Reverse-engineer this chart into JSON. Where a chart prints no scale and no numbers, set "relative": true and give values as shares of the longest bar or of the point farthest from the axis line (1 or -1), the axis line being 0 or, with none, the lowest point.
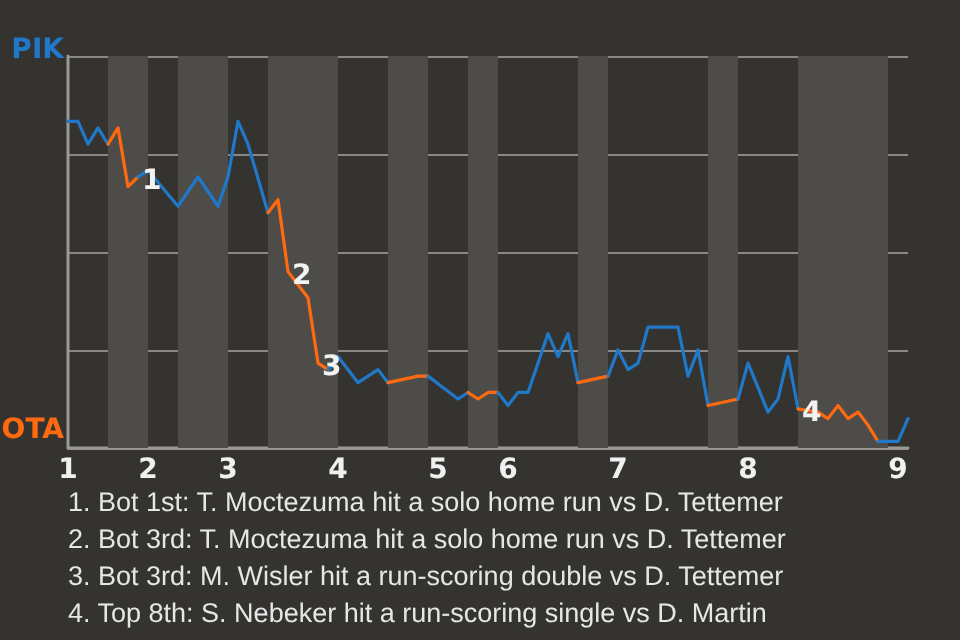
{
  "chart_data": {
    "type": "line",
    "relative": true,
    "categories": [
      "1",
      null,
      null,
      null,
      null,
      null,
      null,
      null,
      "2",
      null,
      null,
      null,
      null,
      null,
      null,
      null,
      "3",
      null,
      null,
      null,
      null,
      null,
      null,
      null,
      null,
      null,
      null,
      "4",
      null,
      null,
      null,
      null,
      null,
      null,
      null,
      null,
      null,
      "5",
      null,
      null,
      null,
      null,
      null,
      null,
      "6",
      null,
      null,
      null,
      null,
      null,
      null,
      null,
      null,
      null,
      null,
      "7",
      null,
      null,
      null,
      null,
      null,
      null,
      null,
      null,
      null,
      null,
      null,
      null,
      "8",
      null,
      null,
      null,
      null,
      null,
      null,
      null,
      null,
      null,
      null,
      null,
      null,
      null,
      null,
      "9",
      null
    ],
    "grid": "y",
    "marker": "none",
    "line_style": "solid",
    "series": [
      {
        "color": "#1f78c8",
        "values": [
          1,
          1,
          0.93,
          0.98,
          0.93,
          null,
          null,
          null,
          null,
          null,
          null,
          null,
          null,
          null,
          null,
          null,
          null,
          null,
          null,
          null,
          null,
          null,
          null,
          null,
          null,
          null,
          null,
          null,
          null,
          null,
          null,
          null,
          null,
          null,
          null,
          null,
          null,
          null,
          null,
          null,
          null,
          null,
          null,
          null,
          null,
          null,
          null,
          null,
          null,
          null,
          null,
          null,
          null,
          null,
          null,
          null,
          null,
          null,
          null,
          null,
          null,
          null,
          null,
          null,
          null,
          null,
          null,
          null,
          null,
          null,
          null,
          null,
          null,
          null,
          null,
          null,
          null,
          null,
          null,
          null,
          null,
          null,
          null,
          null,
          null
        ]
      },
      {
        "color": "#ff6a10",
        "values": [
          null,
          null,
          null,
          null,
          0.93,
          0.98,
          0.8,
          0.83,
          null,
          null,
          null,
          null,
          null,
          null,
          null,
          null,
          null,
          null,
          null,
          null,
          null,
          null,
          null,
          null,
          null,
          null,
          null,
          null,
          null,
          null,
          null,
          null,
          null,
          null,
          null,
          null,
          null,
          null,
          null,
          null,
          null,
          null,
          null,
          null,
          null,
          null,
          null,
          null,
          null,
          null,
          null,
          null,
          null,
          null,
          null,
          null,
          null,
          null,
          null,
          null,
          null,
          null,
          null,
          null,
          null,
          null,
          null,
          null,
          null,
          null,
          null,
          null,
          null,
          null,
          null,
          null,
          null,
          null,
          null,
          null,
          null,
          null,
          null,
          null,
          null
        ]
      },
      {
        "color": "#1f78c8",
        "values": [
          null,
          null,
          null,
          null,
          null,
          null,
          null,
          0.83,
          0.85,
          null,
          null,
          0.74,
          null,
          0.83,
          null,
          0.74,
          0.83,
          1,
          0.93,
          null,
          0.72,
          null,
          null,
          null,
          null,
          null,
          null,
          null,
          null,
          null,
          null,
          null,
          null,
          null,
          null,
          null,
          null,
          null,
          null,
          null,
          null,
          null,
          null,
          null,
          null,
          null,
          null,
          null,
          null,
          null,
          null,
          null,
          null,
          null,
          null,
          null,
          null,
          null,
          null,
          null,
          null,
          null,
          null,
          null,
          null,
          null,
          null,
          null,
          null,
          null,
          null,
          null,
          null,
          null,
          null,
          null,
          null,
          null,
          null,
          null,
          null,
          null,
          null,
          null,
          null
        ]
      },
      {
        "color": "#ff6a10",
        "values": [
          null,
          null,
          null,
          null,
          null,
          null,
          null,
          null,
          null,
          null,
          null,
          null,
          null,
          null,
          null,
          null,
          null,
          null,
          null,
          null,
          0.72,
          0.76,
          0.54,
          null,
          0.46,
          0.26,
          0.24,
          null,
          null,
          null,
          null,
          null,
          null,
          null,
          null,
          null,
          null,
          null,
          null,
          null,
          null,
          null,
          null,
          null,
          null,
          null,
          null,
          null,
          null,
          null,
          null,
          null,
          null,
          null,
          null,
          null,
          null,
          null,
          null,
          null,
          null,
          null,
          null,
          null,
          null,
          null,
          null,
          null,
          null,
          null,
          null,
          null,
          null,
          null,
          null,
          null,
          null,
          null,
          null,
          null,
          null,
          null,
          null,
          null,
          null
        ]
      },
      {
        "color": "#1f78c8",
        "values": [
          null,
          null,
          null,
          null,
          null,
          null,
          null,
          null,
          null,
          null,
          null,
          null,
          null,
          null,
          null,
          null,
          null,
          null,
          null,
          null,
          null,
          null,
          null,
          null,
          null,
          null,
          0.24,
          0.28,
          null,
          0.2,
          null,
          0.24,
          0.2,
          null,
          null,
          null,
          null,
          null,
          null,
          null,
          null,
          null,
          null,
          null,
          null,
          null,
          null,
          null,
          null,
          null,
          null,
          null,
          null,
          null,
          null,
          null,
          null,
          null,
          null,
          null,
          null,
          null,
          null,
          null,
          null,
          null,
          null,
          null,
          null,
          null,
          null,
          null,
          null,
          null,
          null,
          null,
          null,
          null,
          null,
          null,
          null,
          null,
          null,
          null,
          null
        ]
      },
      {
        "color": "#ff6a10",
        "values": [
          null,
          null,
          null,
          null,
          null,
          null,
          null,
          null,
          null,
          null,
          null,
          null,
          null,
          null,
          null,
          null,
          null,
          null,
          null,
          null,
          null,
          null,
          null,
          null,
          null,
          null,
          null,
          null,
          null,
          null,
          null,
          null,
          0.2,
          null,
          null,
          0.22,
          0.22,
          null,
          null,
          null,
          null,
          null,
          null,
          null,
          null,
          null,
          null,
          null,
          null,
          null,
          null,
          null,
          null,
          null,
          null,
          null,
          null,
          null,
          null,
          null,
          null,
          null,
          null,
          null,
          null,
          null,
          null,
          null,
          null,
          null,
          null,
          null,
          null,
          null,
          null,
          null,
          null,
          null,
          null,
          null,
          null,
          null,
          null,
          null,
          null
        ]
      },
      {
        "color": "#1f78c8",
        "values": [
          null,
          null,
          null,
          null,
          null,
          null,
          null,
          null,
          null,
          null,
          null,
          null,
          null,
          null,
          null,
          null,
          null,
          null,
          null,
          null,
          null,
          null,
          null,
          null,
          null,
          null,
          null,
          null,
          null,
          null,
          null,
          null,
          null,
          null,
          null,
          null,
          0.22,
          null,
          null,
          0.15,
          0.17,
          null,
          null,
          null,
          null,
          null,
          null,
          null,
          null,
          null,
          null,
          null,
          null,
          null,
          null,
          null,
          null,
          null,
          null,
          null,
          null,
          null,
          null,
          null,
          null,
          null,
          null,
          null,
          null,
          null,
          null,
          null,
          null,
          null,
          null,
          null,
          null,
          null,
          null,
          null,
          null,
          null,
          null,
          null,
          null
        ]
      },
      {
        "color": "#ff6a10",
        "values": [
          null,
          null,
          null,
          null,
          null,
          null,
          null,
          null,
          null,
          null,
          null,
          null,
          null,
          null,
          null,
          null,
          null,
          null,
          null,
          null,
          null,
          null,
          null,
          null,
          null,
          null,
          null,
          null,
          null,
          null,
          null,
          null,
          null,
          null,
          null,
          null,
          null,
          null,
          null,
          null,
          0.17,
          0.15,
          0.17,
          0.17,
          null,
          null,
          null,
          null,
          null,
          null,
          null,
          null,
          null,
          null,
          null,
          null,
          null,
          null,
          null,
          null,
          null,
          null,
          null,
          null,
          null,
          null,
          null,
          null,
          null,
          null,
          null,
          null,
          null,
          null,
          null,
          null,
          null,
          null,
          null,
          null,
          null,
          null,
          null,
          null,
          null
        ]
      },
      {
        "color": "#1f78c8",
        "values": [
          null,
          null,
          null,
          null,
          null,
          null,
          null,
          null,
          null,
          null,
          null,
          null,
          null,
          null,
          null,
          null,
          null,
          null,
          null,
          null,
          null,
          null,
          null,
          null,
          null,
          null,
          null,
          null,
          null,
          null,
          null,
          null,
          null,
          null,
          null,
          null,
          null,
          null,
          null,
          null,
          null,
          null,
          null,
          0.17,
          0.13,
          0.17,
          0.17,
          null,
          0.35,
          0.28,
          0.35,
          0.2,
          null,
          null,
          null,
          null,
          null,
          null,
          null,
          null,
          null,
          null,
          null,
          null,
          null,
          null,
          null,
          null,
          null,
          null,
          null,
          null,
          null,
          null,
          null,
          null,
          null,
          null,
          null,
          null,
          null,
          null,
          null,
          null,
          null
        ]
      },
      {
        "color": "#ff6a10",
        "values": [
          null,
          null,
          null,
          null,
          null,
          null,
          null,
          null,
          null,
          null,
          null,
          null,
          null,
          null,
          null,
          null,
          null,
          null,
          null,
          null,
          null,
          null,
          null,
          null,
          null,
          null,
          null,
          null,
          null,
          null,
          null,
          null,
          null,
          null,
          null,
          null,
          null,
          null,
          null,
          null,
          null,
          null,
          null,
          null,
          null,
          null,
          null,
          null,
          null,
          null,
          null,
          0.2,
          null,
          null,
          0.22,
          null,
          null,
          null,
          null,
          null,
          null,
          null,
          null,
          null,
          null,
          null,
          null,
          null,
          null,
          null,
          null,
          null,
          null,
          null,
          null,
          null,
          null,
          null,
          null,
          null,
          null,
          null,
          null,
          null,
          null
        ]
      },
      {
        "color": "#1f78c8",
        "values": [
          null,
          null,
          null,
          null,
          null,
          null,
          null,
          null,
          null,
          null,
          null,
          null,
          null,
          null,
          null,
          null,
          null,
          null,
          null,
          null,
          null,
          null,
          null,
          null,
          null,
          null,
          null,
          null,
          null,
          null,
          null,
          null,
          null,
          null,
          null,
          null,
          null,
          null,
          null,
          null,
          null,
          null,
          null,
          null,
          null,
          null,
          null,
          null,
          null,
          null,
          null,
          null,
          null,
          null,
          0.22,
          0.3,
          0.24,
          0.26,
          0.37,
          null,
          null,
          0.37,
          0.22,
          0.3,
          0.13,
          null,
          null,
          null,
          null,
          null,
          null,
          null,
          null,
          null,
          null,
          null,
          null,
          null,
          null,
          null,
          null,
          null,
          null,
          null,
          null
        ]
      },
      {
        "color": "#ff6a10",
        "values": [
          null,
          null,
          null,
          null,
          null,
          null,
          null,
          null,
          null,
          null,
          null,
          null,
          null,
          null,
          null,
          null,
          null,
          null,
          null,
          null,
          null,
          null,
          null,
          null,
          null,
          null,
          null,
          null,
          null,
          null,
          null,
          null,
          null,
          null,
          null,
          null,
          null,
          null,
          null,
          null,
          null,
          null,
          null,
          null,
          null,
          null,
          null,
          null,
          null,
          null,
          null,
          null,
          null,
          null,
          null,
          null,
          null,
          null,
          null,
          null,
          null,
          null,
          null,
          null,
          0.13,
          null,
          null,
          0.15,
          null,
          null,
          null,
          null,
          null,
          null,
          null,
          null,
          null,
          null,
          null,
          null,
          null,
          null,
          null,
          null,
          null
        ]
      },
      {
        "color": "#1f78c8",
        "values": [
          null,
          null,
          null,
          null,
          null,
          null,
          null,
          null,
          null,
          null,
          null,
          null,
          null,
          null,
          null,
          null,
          null,
          null,
          null,
          null,
          null,
          null,
          null,
          null,
          null,
          null,
          null,
          null,
          null,
          null,
          null,
          null,
          null,
          null,
          null,
          null,
          null,
          null,
          null,
          null,
          null,
          null,
          null,
          null,
          null,
          null,
          null,
          null,
          null,
          null,
          null,
          null,
          null,
          null,
          null,
          null,
          null,
          null,
          null,
          null,
          null,
          null,
          null,
          null,
          null,
          null,
          null,
          0.15,
          0.26,
          null,
          0.11,
          0.15,
          0.28,
          0.12,
          null,
          null,
          null,
          null,
          null,
          null,
          null,
          null,
          null,
          null,
          null
        ]
      },
      {
        "color": "#ff6a10",
        "values": [
          null,
          null,
          null,
          null,
          null,
          null,
          null,
          null,
          null,
          null,
          null,
          null,
          null,
          null,
          null,
          null,
          null,
          null,
          null,
          null,
          null,
          null,
          null,
          null,
          null,
          null,
          null,
          null,
          null,
          null,
          null,
          null,
          null,
          null,
          null,
          null,
          null,
          null,
          null,
          null,
          null,
          null,
          null,
          null,
          null,
          null,
          null,
          null,
          null,
          null,
          null,
          null,
          null,
          null,
          null,
          null,
          null,
          null,
          null,
          null,
          null,
          null,
          null,
          null,
          null,
          null,
          null,
          null,
          null,
          null,
          null,
          null,
          null,
          0.12,
          null,
          0.11,
          0.09,
          0.13,
          0.09,
          0.11,
          0.07,
          0.02,
          null,
          null,
          null
        ]
      },
      {
        "color": "#1f78c8",
        "values": [
          null,
          null,
          null,
          null,
          null,
          null,
          null,
          null,
          null,
          null,
          null,
          null,
          null,
          null,
          null,
          null,
          null,
          null,
          null,
          null,
          null,
          null,
          null,
          null,
          null,
          null,
          null,
          null,
          null,
          null,
          null,
          null,
          null,
          null,
          null,
          null,
          null,
          null,
          null,
          null,
          null,
          null,
          null,
          null,
          null,
          null,
          null,
          null,
          null,
          null,
          null,
          null,
          null,
          null,
          null,
          null,
          null,
          null,
          null,
          null,
          null,
          null,
          null,
          null,
          null,
          null,
          null,
          null,
          null,
          null,
          null,
          null,
          null,
          null,
          null,
          null,
          null,
          null,
          null,
          null,
          null,
          0.02,
          null,
          0.02,
          0.09
        ]
      }
    ],
    "annotations": [
      "PIK",
      "OTA",
      {
        "text": "1",
        "y": 0.83
      },
      {
        "text": "2",
        "y": 0.54
      },
      {
        "text": "3",
        "y": 0.26
      },
      {
        "text": "4",
        "y": 0.12
      },
      "1. Bot 1st: T. Moctezuma hit a solo home run vs D. Tettemer",
      "2. Bot 3rd: T. Moctezuma hit a solo home run vs D. Tettemer",
      "3. Bot 3rd: M. Wisler hit a run-scoring double vs D. Tettemer",
      "4. Top 8th: S. Nebeker hit a run-scoring single vs D. Martin"
    ]
  }
}
